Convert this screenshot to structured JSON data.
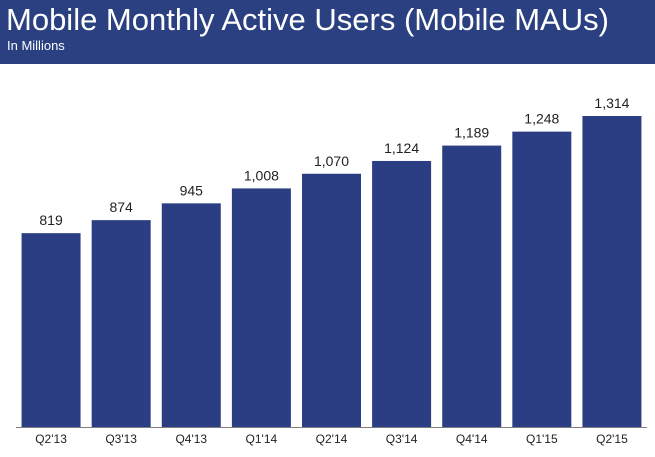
{
  "colors": {
    "header_background": "#2a4081",
    "bar": "#2b3e84",
    "axis": "#7f7f7f",
    "text": "#222222"
  },
  "header": {
    "title": "Mobile Monthly Active Users (Mobile MAUs)",
    "subtitle": "In Millions"
  },
  "chart_data": {
    "type": "bar",
    "title": "Mobile Monthly Active Users (Mobile MAUs)",
    "subtitle": "In Millions",
    "xlabel": "",
    "ylabel": "",
    "grid": false,
    "legend": "none",
    "ylim": [
      0,
      1314
    ],
    "categories": [
      "Q2'13",
      "Q3'13",
      "Q4'13",
      "Q1'14",
      "Q2'14",
      "Q3'14",
      "Q4'14",
      "Q1'15",
      "Q2'15"
    ],
    "values": [
      819,
      874,
      945,
      1008,
      1070,
      1124,
      1189,
      1248,
      1314
    ],
    "data_labels": [
      "819",
      "874",
      "945",
      "1,008",
      "1,070",
      "1,124",
      "1,189",
      "1,248",
      "1,314"
    ]
  }
}
